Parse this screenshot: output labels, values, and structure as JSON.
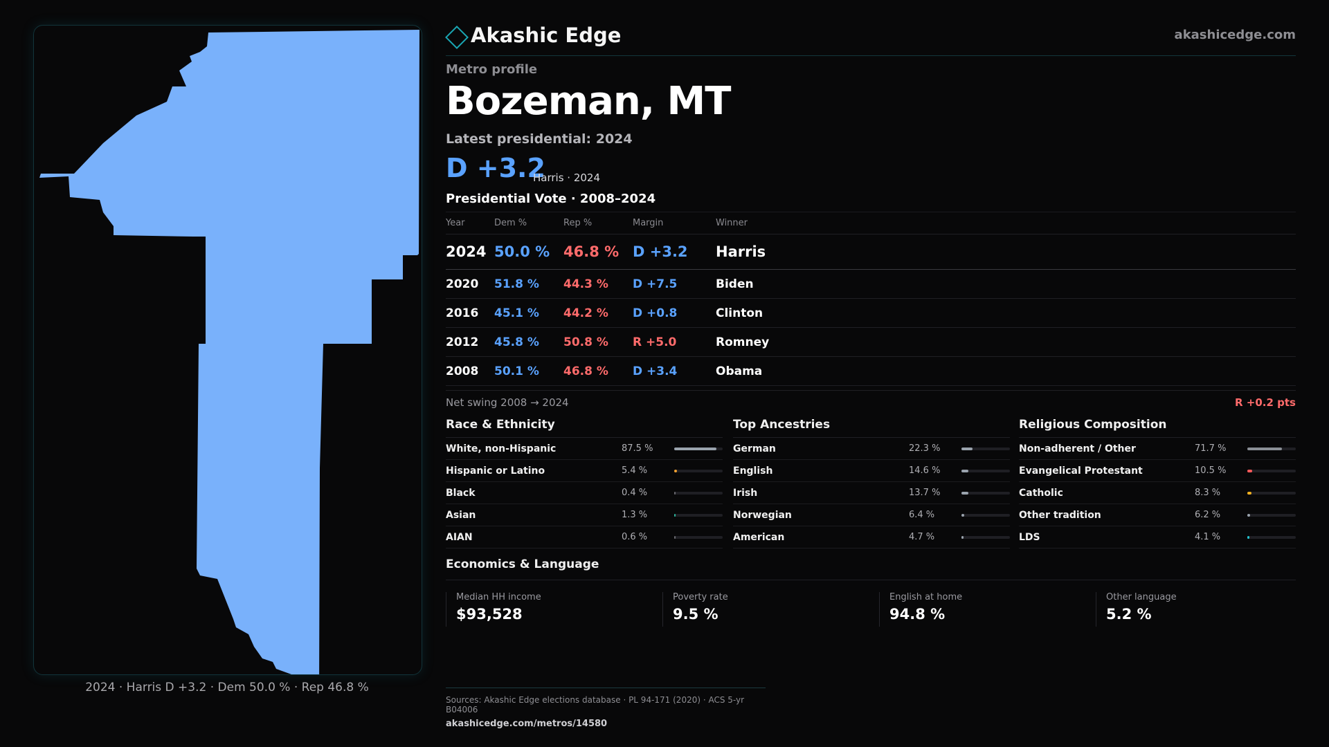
{
  "brand": {
    "name": "Akashic Edge",
    "url": "akashicedge.com",
    "logo_icon": "diamond-icon",
    "accent": "#1aa6b3"
  },
  "map": {
    "caption": "2024 · Harris D +3.2 · Dem 50.0 % · Rep 46.8 %",
    "fill_color": "#79b1fb"
  },
  "header": {
    "kicker": "Metro profile",
    "title": "Bozeman, MT",
    "latest": "Latest presidential: 2024",
    "margin": "D +3.2",
    "margin_sub": "Harris · 2024",
    "vote_title": "Presidential Vote · 2008–2024"
  },
  "vote_table": {
    "headers": {
      "year": "Year",
      "dem": "Dem %",
      "rep": "Rep %",
      "margin": "Margin",
      "winner": "Winner"
    },
    "rows": [
      {
        "year": "2024",
        "dem": "50.0 %",
        "rep": "46.8 %",
        "margin": "D +3.2",
        "party": "D",
        "winner": "Harris"
      },
      {
        "year": "2020",
        "dem": "51.8 %",
        "rep": "44.3 %",
        "margin": "D +7.5",
        "party": "D",
        "winner": "Biden"
      },
      {
        "year": "2016",
        "dem": "45.1 %",
        "rep": "44.2 %",
        "margin": "D +0.8",
        "party": "D",
        "winner": "Clinton"
      },
      {
        "year": "2012",
        "dem": "45.8 %",
        "rep": "50.8 %",
        "margin": "R +5.0",
        "party": "R",
        "winner": "Romney"
      },
      {
        "year": "2008",
        "dem": "50.1 %",
        "rep": "46.8 %",
        "margin": "D +3.4",
        "party": "D",
        "winner": "Obama"
      }
    ]
  },
  "swing": {
    "label": "Net swing 2008 → 2024",
    "value": "R +0.2 pts"
  },
  "race": {
    "title": "Race & Ethnicity",
    "rows": [
      {
        "label": "White, non-Hispanic",
        "value": "87.5 %",
        "pct": 87.5,
        "color": "#9aa3ad"
      },
      {
        "label": "Hispanic or Latino",
        "value": "5.4 %",
        "pct": 5.4,
        "color": "#f0a030"
      },
      {
        "label": "Black",
        "value": "0.4 %",
        "pct": 0.4,
        "color": "#6a6a70"
      },
      {
        "label": "Asian",
        "value": "1.3 %",
        "pct": 1.3,
        "color": "#2bb39a"
      },
      {
        "label": "AIAN",
        "value": "0.6 %",
        "pct": 0.6,
        "color": "#6a6a70"
      }
    ]
  },
  "ancestry": {
    "title": "Top Ancestries",
    "rows": [
      {
        "label": "German",
        "value": "22.3 %",
        "pct": 22.3,
        "color": "#9aa3ad"
      },
      {
        "label": "English",
        "value": "14.6 %",
        "pct": 14.6,
        "color": "#9aa3ad"
      },
      {
        "label": "Irish",
        "value": "13.7 %",
        "pct": 13.7,
        "color": "#9aa3ad"
      },
      {
        "label": "Norwegian",
        "value": "6.4 %",
        "pct": 6.4,
        "color": "#9aa3ad"
      },
      {
        "label": "American",
        "value": "4.7 %",
        "pct": 4.7,
        "color": "#9aa3ad"
      }
    ]
  },
  "religion": {
    "title": "Religious Composition",
    "rows": [
      {
        "label": "Non-adherent / Other",
        "value": "71.7 %",
        "pct": 71.7,
        "color": "#8a8f96"
      },
      {
        "label": "Evangelical Protestant",
        "value": "10.5 %",
        "pct": 10.5,
        "color": "#ff5a5a"
      },
      {
        "label": "Catholic",
        "value": "8.3 %",
        "pct": 8.3,
        "color": "#f0b020"
      },
      {
        "label": "Other tradition",
        "value": "6.2 %",
        "pct": 6.2,
        "color": "#9aa3ad"
      },
      {
        "label": "LDS",
        "value": "4.1 %",
        "pct": 4.1,
        "color": "#22c4d0"
      }
    ]
  },
  "economics": {
    "title": "Economics & Language",
    "cards": [
      {
        "label": "Median HH income",
        "value": "$93,528"
      },
      {
        "label": "Poverty rate",
        "value": "9.5 %"
      },
      {
        "label": "English at home",
        "value": "94.8 %"
      },
      {
        "label": "Other language",
        "value": "5.2 %"
      }
    ]
  },
  "sources": {
    "text": "Sources: Akashic Edge elections database · PL 94-171 (2020) · ACS 5-yr B04006",
    "url": "akashicedge.com/metros/14580"
  },
  "colors": {
    "dem": "#5aa2ff",
    "rep": "#ff6b6b"
  }
}
